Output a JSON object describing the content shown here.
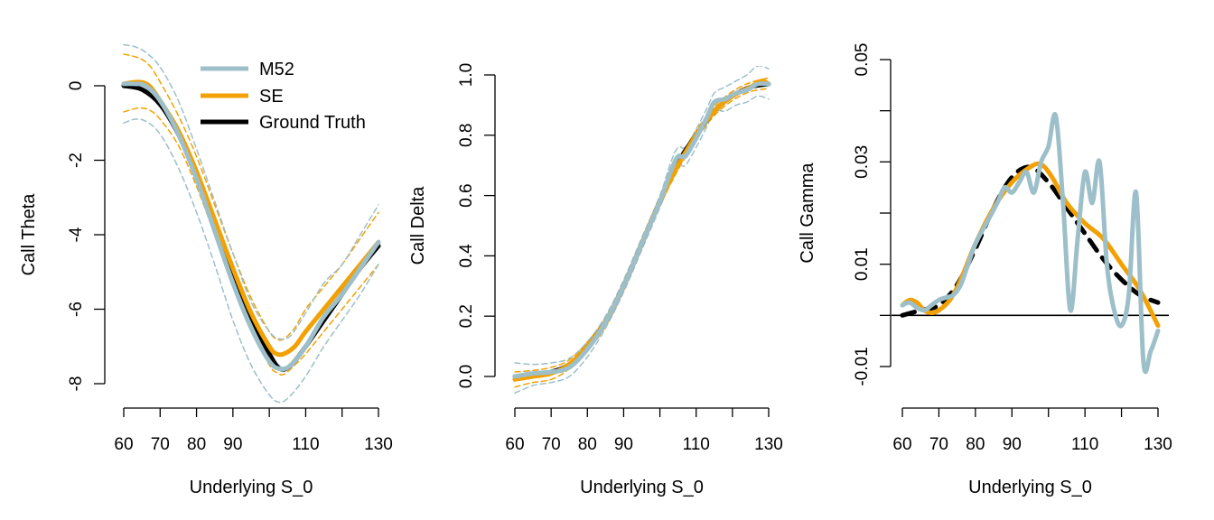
{
  "chart_data": [
    {
      "type": "line",
      "xlabel": "Underlying S_0",
      "ylabel": "Call Theta",
      "xlim": [
        60,
        130
      ],
      "ylim": [
        -8.6,
        1.2
      ],
      "xticks": [
        60,
        70,
        80,
        90,
        110,
        130
      ],
      "yticks": [
        0,
        -2,
        -4,
        -6,
        -8
      ],
      "ytick_labels": [
        "0",
        "-2",
        "-4",
        "-6",
        "-8"
      ],
      "legend": {
        "position": "top",
        "entries": [
          {
            "label": "M52",
            "color": "#9dbfc9"
          },
          {
            "label": "SE",
            "color": "#f2a104"
          },
          {
            "label": "Ground Truth",
            "color": "#000000"
          }
        ]
      },
      "series": [
        {
          "name": "Ground Truth",
          "style": "solid",
          "color": "#000000",
          "x": [
            60,
            65,
            70,
            75,
            80,
            85,
            90,
            95,
            100,
            103,
            106,
            110,
            115,
            120,
            125,
            130
          ],
          "y": [
            0,
            -0.1,
            -0.5,
            -1.3,
            -2.4,
            -3.7,
            -5.0,
            -6.2,
            -7.2,
            -7.6,
            -7.5,
            -7.0,
            -6.3,
            -5.6,
            -4.9,
            -4.3
          ]
        },
        {
          "name": "SE",
          "style": "solid",
          "color": "#f2a104",
          "x": [
            60,
            64,
            67,
            70,
            75,
            80,
            85,
            90,
            95,
            100,
            102,
            104,
            107,
            110,
            115,
            120,
            125,
            130
          ],
          "y": [
            0.05,
            0.1,
            0.0,
            -0.4,
            -1.2,
            -2.3,
            -3.6,
            -4.9,
            -6.1,
            -7.0,
            -7.2,
            -7.2,
            -7.0,
            -6.6,
            -6.0,
            -5.4,
            -4.8,
            -4.2
          ]
        },
        {
          "name": "M52",
          "style": "solid",
          "color": "#9dbfc9",
          "x": [
            60,
            63,
            66,
            70,
            75,
            80,
            85,
            90,
            95,
            100,
            103,
            106,
            110,
            115,
            120,
            125,
            130
          ],
          "y": [
            0.05,
            0.05,
            0.0,
            -0.4,
            -1.3,
            -2.5,
            -3.9,
            -5.3,
            -6.5,
            -7.4,
            -7.6,
            -7.5,
            -7.0,
            -6.2,
            -5.6,
            -4.9,
            -4.2
          ]
        },
        {
          "name": "",
          "style": "dashed",
          "color": "#f2a104",
          "x": [
            60,
            64,
            67,
            70,
            75,
            80,
            85,
            90,
            95,
            100,
            102,
            104,
            107,
            110,
            115,
            120,
            125,
            130
          ],
          "y": [
            0.85,
            0.75,
            0.55,
            0.1,
            -0.8,
            -1.9,
            -3.2,
            -4.5,
            -5.7,
            -6.6,
            -6.8,
            -6.8,
            -6.5,
            -6.0,
            -5.4,
            -4.8,
            -4.1,
            -3.4
          ]
        },
        {
          "name": "",
          "style": "dashed",
          "color": "#f2a104",
          "x": [
            60,
            64,
            67,
            70,
            75,
            80,
            85,
            90,
            95,
            100,
            102,
            104,
            107,
            110,
            115,
            120,
            125,
            130
          ],
          "y": [
            -0.7,
            -0.6,
            -0.65,
            -0.9,
            -1.6,
            -2.7,
            -4.0,
            -5.3,
            -6.5,
            -7.5,
            -7.7,
            -7.75,
            -7.5,
            -7.2,
            -6.6,
            -6.0,
            -5.4,
            -4.8
          ]
        },
        {
          "name": "",
          "style": "dashed",
          "color": "#9dbfc9",
          "x": [
            60,
            63,
            66,
            70,
            75,
            80,
            85,
            90,
            95,
            100,
            103,
            106,
            110,
            115,
            120,
            125,
            130
          ],
          "y": [
            1.1,
            1.05,
            0.9,
            0.5,
            -0.4,
            -1.7,
            -3.1,
            -4.5,
            -5.8,
            -6.6,
            -6.8,
            -6.7,
            -6.1,
            -5.3,
            -4.8,
            -4.0,
            -3.2
          ]
        },
        {
          "name": "",
          "style": "dashed",
          "color": "#9dbfc9",
          "x": [
            60,
            63,
            66,
            70,
            75,
            80,
            85,
            90,
            95,
            100,
            103,
            106,
            110,
            115,
            120,
            125,
            130
          ],
          "y": [
            -1.0,
            -0.9,
            -0.95,
            -1.3,
            -2.2,
            -3.4,
            -4.8,
            -6.3,
            -7.5,
            -8.3,
            -8.5,
            -8.3,
            -7.8,
            -7.0,
            -6.3,
            -5.6,
            -4.8
          ]
        }
      ]
    },
    {
      "type": "line",
      "xlabel": "Underlying S_0",
      "ylabel": "Call Delta",
      "xlim": [
        60,
        130
      ],
      "ylim": [
        -0.06,
        1.03
      ],
      "xticks": [
        60,
        70,
        80,
        90,
        110,
        130
      ],
      "yticks": [
        0.0,
        0.2,
        0.4,
        0.6,
        0.8,
        1.0
      ],
      "ytick_labels": [
        "0.0",
        "0.2",
        "0.4",
        "0.6",
        "0.8",
        "1.0"
      ],
      "series": [
        {
          "name": "Ground Truth",
          "style": "solid",
          "color": "#000000",
          "x": [
            60,
            65,
            70,
            75,
            80,
            85,
            90,
            95,
            100,
            105,
            110,
            115,
            120,
            125,
            130
          ],
          "y": [
            0.0,
            0.005,
            0.015,
            0.04,
            0.1,
            0.18,
            0.3,
            0.44,
            0.58,
            0.71,
            0.8,
            0.88,
            0.93,
            0.96,
            0.97
          ]
        },
        {
          "name": "SE",
          "style": "solid",
          "color": "#f2a104",
          "x": [
            60,
            65,
            70,
            75,
            80,
            85,
            90,
            95,
            100,
            105,
            110,
            115,
            120,
            125,
            128,
            130
          ],
          "y": [
            -0.01,
            0.0,
            0.01,
            0.04,
            0.1,
            0.18,
            0.3,
            0.44,
            0.58,
            0.7,
            0.8,
            0.88,
            0.93,
            0.96,
            0.98,
            0.97
          ]
        },
        {
          "name": "M52",
          "style": "solid",
          "color": "#9dbfc9",
          "x": [
            60,
            65,
            70,
            75,
            80,
            85,
            90,
            95,
            100,
            103,
            105,
            107,
            110,
            113,
            115,
            118,
            121,
            124,
            127,
            130
          ],
          "y": [
            0.0,
            0.01,
            0.015,
            0.03,
            0.09,
            0.18,
            0.3,
            0.44,
            0.58,
            0.68,
            0.73,
            0.73,
            0.79,
            0.86,
            0.91,
            0.92,
            0.94,
            0.95,
            0.97,
            0.97
          ]
        },
        {
          "name": "",
          "style": "dashed",
          "color": "#f2a104",
          "x": [
            60,
            65,
            70,
            75,
            80,
            85,
            90,
            95,
            100,
            105,
            110,
            115,
            120,
            125,
            130
          ],
          "y": [
            0.015,
            0.02,
            0.03,
            0.055,
            0.115,
            0.195,
            0.315,
            0.455,
            0.595,
            0.715,
            0.815,
            0.895,
            0.945,
            0.975,
            0.99
          ]
        },
        {
          "name": "",
          "style": "dashed",
          "color": "#f2a104",
          "x": [
            60,
            65,
            70,
            75,
            80,
            85,
            90,
            95,
            100,
            105,
            110,
            115,
            120,
            125,
            130
          ],
          "y": [
            -0.035,
            -0.02,
            -0.01,
            0.025,
            0.085,
            0.165,
            0.285,
            0.425,
            0.565,
            0.685,
            0.785,
            0.865,
            0.915,
            0.945,
            0.955
          ]
        },
        {
          "name": "",
          "style": "dashed",
          "color": "#9dbfc9",
          "x": [
            60,
            65,
            70,
            75,
            80,
            85,
            90,
            95,
            100,
            103,
            105,
            107,
            110,
            113,
            115,
            118,
            121,
            124,
            127,
            130
          ],
          "y": [
            0.045,
            0.04,
            0.045,
            0.06,
            0.115,
            0.2,
            0.32,
            0.46,
            0.6,
            0.71,
            0.76,
            0.76,
            0.82,
            0.89,
            0.94,
            0.96,
            0.98,
            1.0,
            1.03,
            1.02
          ]
        },
        {
          "name": "",
          "style": "dashed",
          "color": "#9dbfc9",
          "x": [
            60,
            65,
            70,
            75,
            80,
            85,
            90,
            95,
            100,
            103,
            105,
            107,
            110,
            113,
            115,
            118,
            121,
            124,
            127,
            130
          ],
          "y": [
            -0.055,
            -0.03,
            -0.02,
            0.0,
            0.065,
            0.16,
            0.28,
            0.42,
            0.56,
            0.65,
            0.7,
            0.7,
            0.76,
            0.83,
            0.88,
            0.88,
            0.9,
            0.91,
            0.93,
            0.92
          ]
        }
      ]
    },
    {
      "type": "line",
      "xlabel": "Underlying S_0",
      "ylabel": "Call Gamma",
      "xlim": [
        60,
        130
      ],
      "ylim": [
        -0.013,
        0.05
      ],
      "xticks": [
        60,
        70,
        80,
        90,
        110,
        130
      ],
      "yticks": [
        -0.01,
        0.0,
        0.01,
        0.02,
        0.03,
        0.04,
        0.05
      ],
      "ytick_labels": [
        "-0.01",
        "",
        "0.01",
        "",
        "0.03",
        "",
        "0.05"
      ],
      "hline": 0,
      "series": [
        {
          "name": "Ground Truth",
          "style": "solid",
          "color": "#000000",
          "x": [
            60,
            65,
            70,
            75,
            80,
            85,
            90,
            95,
            100,
            105,
            110,
            115,
            120,
            125,
            130
          ],
          "y": [
            0.0,
            0.001,
            0.002,
            0.006,
            0.013,
            0.021,
            0.027,
            0.029,
            0.026,
            0.021,
            0.016,
            0.011,
            0.007,
            0.004,
            0.0025
          ]
        },
        {
          "name": "SE",
          "style": "solid",
          "color": "#f2a104",
          "x": [
            60,
            62,
            64,
            66,
            68,
            70,
            73,
            76,
            80,
            85,
            90,
            95,
            98,
            101,
            105,
            110,
            115,
            120,
            125,
            130
          ],
          "y": [
            0.002,
            0.003,
            0.0025,
            0.001,
            0.0005,
            0.001,
            0.003,
            0.007,
            0.014,
            0.021,
            0.026,
            0.029,
            0.0295,
            0.027,
            0.022,
            0.018,
            0.015,
            0.01,
            0.005,
            -0.002
          ]
        },
        {
          "name": "M52",
          "style": "solid",
          "color": "#9dbfc9",
          "x": [
            60,
            62,
            64,
            66,
            68,
            70,
            72,
            74,
            76,
            78,
            80,
            83,
            86,
            88,
            90,
            92,
            94,
            96,
            98,
            100,
            102,
            104,
            106,
            108,
            110,
            112,
            114,
            116,
            118,
            120,
            122,
            124,
            126,
            128,
            130
          ],
          "y": [
            0.002,
            0.0025,
            0.0015,
            0.001,
            0.002,
            0.003,
            0.0035,
            0.004,
            0.006,
            0.01,
            0.014,
            0.018,
            0.022,
            0.025,
            0.024,
            0.026,
            0.028,
            0.024,
            0.03,
            0.033,
            0.039,
            0.022,
            0.001,
            0.015,
            0.028,
            0.022,
            0.03,
            0.01,
            0.001,
            -0.002,
            0.004,
            0.024,
            -0.009,
            -0.007,
            -0.003
          ]
        }
      ]
    }
  ]
}
